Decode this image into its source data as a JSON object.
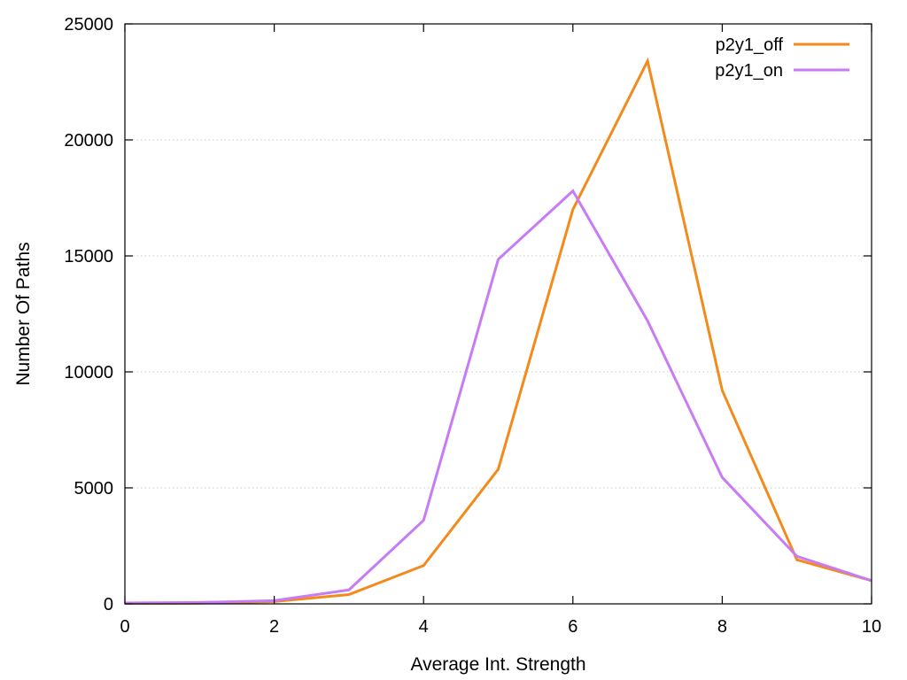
{
  "chart_data": {
    "type": "line",
    "title": "",
    "xlabel": "Average Int. Strength",
    "ylabel": "Number Of Paths",
    "xlim": [
      0,
      10
    ],
    "ylim": [
      0,
      25000
    ],
    "xticks": [
      0,
      2,
      4,
      6,
      8,
      10
    ],
    "yticks": [
      0,
      5000,
      10000,
      15000,
      20000,
      25000
    ],
    "x": [
      0,
      1,
      2,
      3,
      4,
      5,
      6,
      7,
      8,
      9,
      10
    ],
    "grid": "horizontal-dotted",
    "legend_position": "top-right",
    "series": [
      {
        "name": "p2y1_off",
        "color": "#f28a1c",
        "values": [
          20,
          30,
          100,
          400,
          1650,
          5800,
          17000,
          23400,
          9200,
          1900,
          1000
        ]
      },
      {
        "name": "p2y1_on",
        "color": "#c77bf5",
        "values": [
          40,
          60,
          140,
          600,
          3600,
          14850,
          17800,
          12200,
          5450,
          2050,
          1000
        ]
      }
    ]
  }
}
